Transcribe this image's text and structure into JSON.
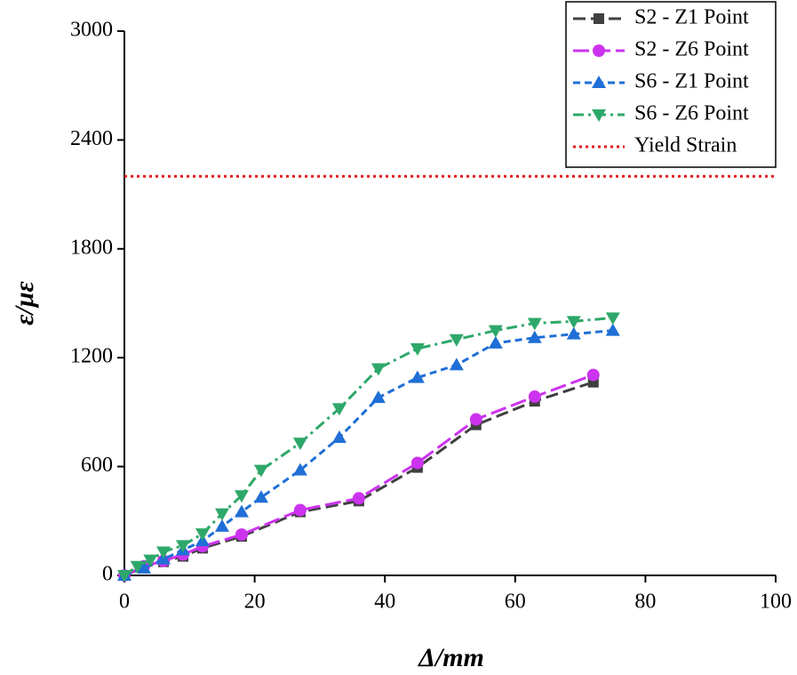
{
  "chart_data": {
    "type": "line",
    "x_label": "Δ/mm",
    "y_label": "ε/με",
    "xlim": [
      0,
      100
    ],
    "xticks": [
      0,
      20,
      40,
      60,
      80,
      100
    ],
    "ylim": [
      0,
      3000
    ],
    "yticks": [
      0,
      600,
      1200,
      1800,
      2400,
      3000
    ],
    "legend": "upper right",
    "series": [
      {
        "name": "S2 - Z1 Point",
        "color": "#404040",
        "dash": "dash",
        "marker": "square",
        "x": [
          0,
          3,
          6,
          9,
          12,
          18,
          27,
          36,
          45,
          54,
          63,
          72
        ],
        "values": [
          0,
          45,
          75,
          105,
          150,
          215,
          350,
          410,
          595,
          830,
          960,
          1065
        ]
      },
      {
        "name": "S2 - Z6 Point",
        "color": "#cc33ee",
        "dash": "longdash",
        "marker": "circle",
        "x": [
          0,
          3,
          6,
          9,
          12,
          18,
          27,
          36,
          45,
          54,
          63,
          72
        ],
        "values": [
          0,
          50,
          80,
          115,
          160,
          225,
          360,
          425,
          620,
          860,
          985,
          1105
        ]
      },
      {
        "name": "S6 - Z1 Point",
        "color": "#1f6fd6",
        "dash": "shortdash",
        "marker": "triangle-up",
        "x": [
          0,
          3,
          6,
          9,
          12,
          15,
          18,
          21,
          27,
          33,
          39,
          45,
          51,
          57,
          63,
          69,
          75
        ],
        "values": [
          0,
          40,
          90,
          140,
          190,
          270,
          350,
          430,
          580,
          760,
          980,
          1090,
          1160,
          1280,
          1310,
          1330,
          1350
        ]
      },
      {
        "name": "S6 - Z6 Point",
        "color": "#2ea86a",
        "dash": "dashdot",
        "marker": "triangle-down",
        "x": [
          0,
          2,
          4,
          6,
          9,
          12,
          15,
          18,
          21,
          27,
          33,
          39,
          45,
          51,
          57,
          63,
          69,
          75
        ],
        "values": [
          0,
          50,
          85,
          130,
          165,
          230,
          340,
          440,
          580,
          730,
          920,
          1140,
          1250,
          1300,
          1350,
          1390,
          1400,
          1420
        ]
      },
      {
        "name": "Yield Strain",
        "color": "#e31a1c",
        "dash": "dot",
        "marker": "none",
        "x": [
          0,
          100
        ],
        "values": [
          2200,
          2200
        ]
      }
    ]
  }
}
